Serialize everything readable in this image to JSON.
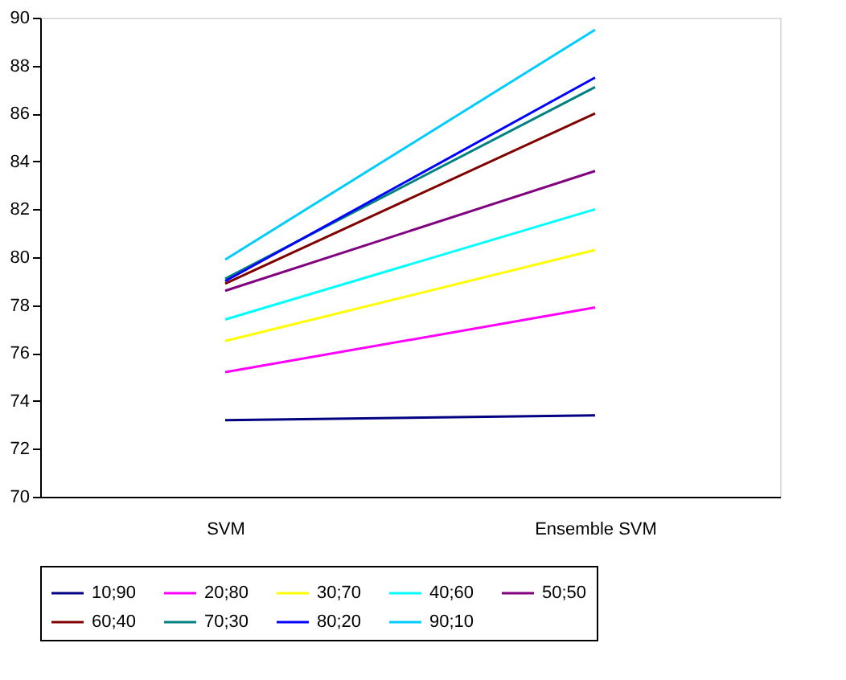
{
  "chart_data": {
    "type": "line",
    "categories": [
      "SVM",
      "Ensemble SVM"
    ],
    "series": [
      {
        "name": "10;90",
        "color": "#000080",
        "values": [
          73.2,
          73.4
        ]
      },
      {
        "name": "20;80",
        "color": "#ff00ff",
        "values": [
          75.2,
          77.9
        ]
      },
      {
        "name": "30;70",
        "color": "#ffff00",
        "values": [
          76.5,
          80.3
        ]
      },
      {
        "name": "40;60",
        "color": "#00ffff",
        "values": [
          77.4,
          82.0
        ]
      },
      {
        "name": "50;50",
        "color": "#800080",
        "values": [
          78.6,
          83.6
        ]
      },
      {
        "name": "60;40",
        "color": "#800000",
        "values": [
          78.9,
          86.0
        ]
      },
      {
        "name": "70;30",
        "color": "#008080",
        "values": [
          79.1,
          87.1
        ]
      },
      {
        "name": "80;20",
        "color": "#0000ff",
        "values": [
          79.0,
          87.5
        ]
      },
      {
        "name": "90;10",
        "color": "#00ccff",
        "values": [
          79.9,
          89.5
        ]
      }
    ],
    "ylim": [
      70,
      90
    ],
    "yticks": [
      70,
      72,
      74,
      76,
      78,
      80,
      82,
      84,
      86,
      88,
      90
    ],
    "grid": false,
    "legend": "bottom",
    "marker": "none",
    "line_style": "solid"
  }
}
